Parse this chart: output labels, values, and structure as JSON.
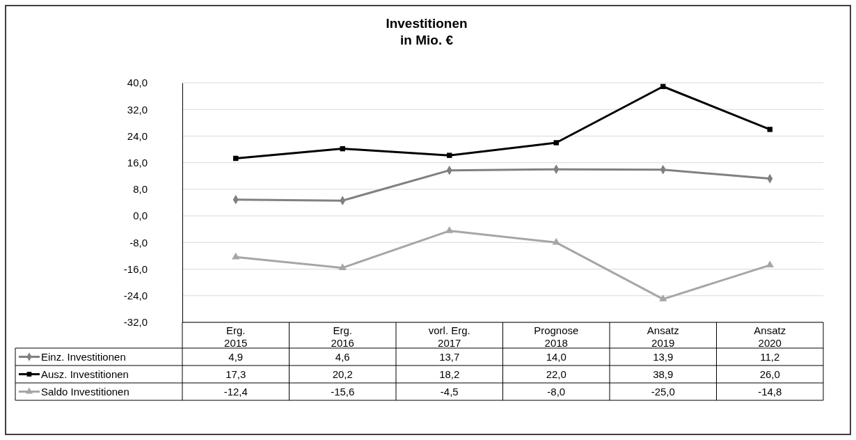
{
  "chart_data": {
    "type": "line",
    "title": "Investitionen\nin Mio. €",
    "categories": [
      "Erg. 2015",
      "Erg. 2016",
      "vorl. Erg. 2017",
      "Prognose 2018",
      "Ansatz 2019",
      "Ansatz 2020"
    ],
    "series": [
      {
        "name": "Einz. Investitionen",
        "color": "#808080",
        "marker": "diamond",
        "values": [
          4.9,
          4.6,
          13.7,
          14.0,
          13.9,
          11.2
        ],
        "value_labels": [
          "4,9",
          "4,6",
          "13,7",
          "14,0",
          "13,9",
          "11,2"
        ]
      },
      {
        "name": "Ausz. Investitionen",
        "color": "#000000",
        "marker": "square",
        "values": [
          17.3,
          20.2,
          18.2,
          22.0,
          38.9,
          26.0
        ],
        "value_labels": [
          "17,3",
          "20,2",
          "18,2",
          "22,0",
          "38,9",
          "26,0"
        ]
      },
      {
        "name": "Saldo Investitionen",
        "color": "#a6a6a6",
        "marker": "triangle",
        "values": [
          -12.4,
          -15.6,
          -4.5,
          -8.0,
          -25.0,
          -14.8
        ],
        "value_labels": [
          "-12,4",
          "-15,6",
          "-4,5",
          "-8,0",
          "-25,0",
          "-14,8"
        ]
      }
    ],
    "ylim": [
      -32,
      40
    ],
    "yticks": [
      {
        "value": -32,
        "label": "-32,0"
      },
      {
        "value": -24,
        "label": "-24,0"
      },
      {
        "value": -16,
        "label": "-16,0"
      },
      {
        "value": -8,
        "label": "-8,0"
      },
      {
        "value": 0,
        "label": "0,0"
      },
      {
        "value": 8,
        "label": "8,0"
      },
      {
        "value": 16,
        "label": "16,0"
      },
      {
        "value": 24,
        "label": "24,0"
      },
      {
        "value": 32,
        "label": "32,0"
      },
      {
        "value": 40,
        "label": "40,0"
      }
    ],
    "grid": "y",
    "legend": "bottom",
    "line_style": "solid"
  }
}
